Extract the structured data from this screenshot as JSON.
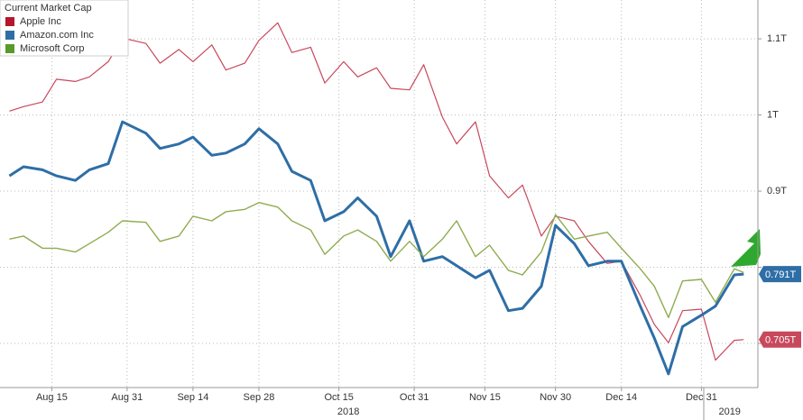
{
  "chart_data": {
    "type": "line",
    "legend_title": "Current Market Cap",
    "x": [
      "2018-08-06",
      "2018-08-09",
      "2018-08-13",
      "2018-08-16",
      "2018-08-20",
      "2018-08-23",
      "2018-08-27",
      "2018-08-30",
      "2018-09-04",
      "2018-09-07",
      "2018-09-11",
      "2018-09-14",
      "2018-09-18",
      "2018-09-21",
      "2018-09-25",
      "2018-09-28",
      "2018-10-02",
      "2018-10-05",
      "2018-10-09",
      "2018-10-12",
      "2018-10-16",
      "2018-10-19",
      "2018-10-23",
      "2018-10-26",
      "2018-10-30",
      "2018-11-02",
      "2018-11-06",
      "2018-11-09",
      "2018-11-13",
      "2018-11-16",
      "2018-11-20",
      "2018-11-23",
      "2018-11-27",
      "2018-11-30",
      "2018-12-04",
      "2018-12-07",
      "2018-12-11",
      "2018-12-14",
      "2018-12-18",
      "2018-12-21",
      "2018-12-24",
      "2018-12-27",
      "2018-12-31",
      "2019-01-03",
      "2019-01-07",
      "2019-01-09"
    ],
    "series": [
      {
        "name": "Apple Inc",
        "color": "#c8485c",
        "legend_color": "#b5162e",
        "width": 1.2,
        "values": [
          1.005,
          1.011,
          1.017,
          1.047,
          1.044,
          1.05,
          1.07,
          1.101,
          1.094,
          1.068,
          1.086,
          1.07,
          1.092,
          1.059,
          1.068,
          1.098,
          1.121,
          1.082,
          1.089,
          1.042,
          1.07,
          1.05,
          1.062,
          1.035,
          1.033,
          1.066,
          0.997,
          0.962,
          0.991,
          0.92,
          0.891,
          0.908,
          0.841,
          0.867,
          0.861,
          0.834,
          0.805,
          0.808,
          0.763,
          0.725,
          0.701,
          0.743,
          0.745,
          0.678,
          0.704,
          0.705
        ],
        "value_labels": [
          null,
          null,
          null,
          null,
          null,
          null,
          null,
          null,
          null,
          null,
          null,
          null,
          null,
          null,
          null,
          null,
          null,
          null,
          null,
          null,
          null,
          null,
          null,
          null,
          null,
          null,
          null,
          null,
          null,
          null,
          null,
          null,
          null,
          null,
          null,
          null,
          null,
          null,
          null,
          null,
          null,
          null,
          null,
          null,
          null,
          "0.705T"
        ]
      },
      {
        "name": "Amazon.com Inc",
        "color": "#2e6ea6",
        "legend_color": "#2e6ea6",
        "width": 3,
        "values": [
          0.92,
          0.932,
          0.928,
          0.92,
          0.914,
          0.928,
          0.936,
          0.991,
          0.976,
          0.956,
          0.962,
          0.971,
          0.947,
          0.95,
          0.962,
          0.982,
          0.962,
          0.926,
          0.914,
          0.861,
          0.873,
          0.891,
          0.867,
          0.814,
          0.861,
          0.808,
          0.814,
          0.802,
          0.786,
          0.796,
          0.743,
          0.746,
          0.775,
          0.855,
          0.831,
          0.802,
          0.808,
          0.808,
          0.749,
          0.707,
          0.66,
          0.722,
          0.737,
          0.749,
          0.79,
          0.791
        ],
        "value_labels": [
          null,
          null,
          null,
          null,
          null,
          null,
          null,
          null,
          null,
          null,
          null,
          null,
          null,
          null,
          null,
          null,
          null,
          null,
          null,
          null,
          null,
          null,
          null,
          null,
          null,
          null,
          null,
          null,
          null,
          null,
          null,
          null,
          null,
          null,
          null,
          null,
          null,
          null,
          null,
          null,
          null,
          null,
          null,
          null,
          null,
          "0.791T"
        ]
      },
      {
        "name": "Microsoft Corp",
        "color": "#8eac50",
        "legend_color": "#5a9a2a",
        "width": 1.4,
        "values": [
          0.837,
          0.841,
          0.825,
          0.825,
          0.82,
          0.831,
          0.846,
          0.861,
          0.859,
          0.834,
          0.841,
          0.867,
          0.861,
          0.873,
          0.876,
          0.885,
          0.879,
          0.861,
          0.849,
          0.817,
          0.841,
          0.849,
          0.834,
          0.808,
          0.834,
          0.814,
          0.837,
          0.861,
          0.814,
          0.829,
          0.796,
          0.79,
          0.82,
          0.869,
          0.837,
          0.841,
          0.846,
          0.825,
          0.798,
          0.775,
          0.734,
          0.782,
          0.784,
          0.754,
          0.798,
          0.793
        ]
      }
    ],
    "xlim": [
      "2018-08-04",
      "2019-01-12"
    ],
    "xticks": [
      {
        "value": "2018-08-15",
        "label": "Aug 15"
      },
      {
        "value": "2018-08-31",
        "label": "Aug 31"
      },
      {
        "value": "2018-09-14",
        "label": "Sep 14"
      },
      {
        "value": "2018-09-28",
        "label": "Sep 28"
      },
      {
        "value": "2018-10-15",
        "label": "Oct 15"
      },
      {
        "value": "2018-10-31",
        "label": "Oct 31"
      },
      {
        "value": "2018-11-15",
        "label": "Nov 15"
      },
      {
        "value": "2018-11-30",
        "label": "Nov 30"
      },
      {
        "value": "2018-12-14",
        "label": "Dec 14"
      },
      {
        "value": "2018-12-31",
        "label": "Dec 31"
      }
    ],
    "x_year_labels": [
      {
        "value": "2018-10-17",
        "label": "2018"
      },
      {
        "value": "2019-01-06",
        "label": "2019"
      }
    ],
    "ylim": [
      0.642,
      1.151
    ],
    "yticks": [
      0.7,
      0.8,
      {
        "value": 0.9,
        "label": "0.9T"
      },
      {
        "value": 1,
        "label": "1T"
      },
      {
        "value": 1.1,
        "label": "1.1T"
      }
    ],
    "y_axis_side": "right",
    "grid": true
  }
}
